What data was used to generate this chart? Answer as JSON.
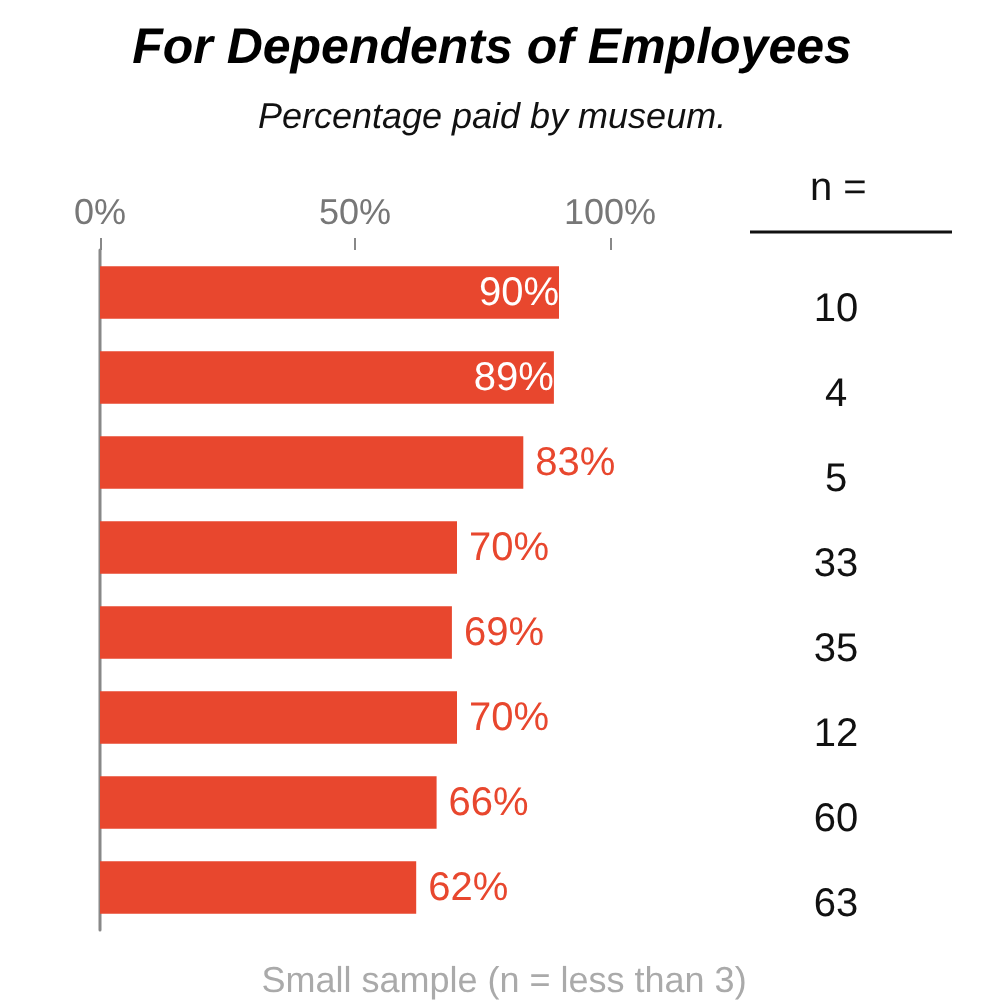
{
  "chart_data": {
    "type": "bar",
    "orientation": "horizontal",
    "title": "For Dependents of Employees",
    "subtitle": "Percentage paid by museum.",
    "categories": [
      null,
      null,
      null,
      null,
      null,
      null,
      null,
      null
    ],
    "values": [
      90,
      89,
      83,
      70,
      69,
      70,
      66,
      62
    ],
    "value_labels": [
      "90%",
      "89%",
      "83%",
      "70%",
      "69%",
      "70%",
      "66%",
      "62%"
    ],
    "color": "#e8472e",
    "xlim": [
      0,
      100
    ],
    "xticks": [
      {
        "value": 0,
        "label": "0%"
      },
      {
        "value": 50,
        "label": "50%"
      },
      {
        "value": 100,
        "label": "100%"
      }
    ],
    "annotations": [
      "n =",
      "10",
      "4",
      "5",
      "33",
      "35",
      "12",
      "60",
      "63",
      "Small sample (n = less than 3)"
    ]
  }
}
